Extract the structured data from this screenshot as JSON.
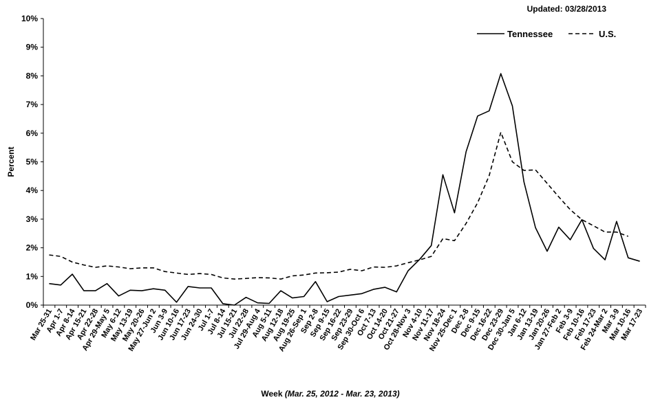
{
  "updated": "Updated: 03/28/2013",
  "chart_data": {
    "type": "line",
    "ylabel": "Percent",
    "xlabel_prefix": "Week ",
    "xlabel_italic": "(Mar. 25, 2012 - Mar. 23, 2013)",
    "ylim": [
      0,
      10
    ],
    "yticks": [
      "0%",
      "1%",
      "2%",
      "3%",
      "4%",
      "5%",
      "6%",
      "7%",
      "8%",
      "9%",
      "10%"
    ],
    "legend_position": "top-right",
    "categories": [
      "Mar 25-31",
      "Apr 1-7",
      "Apr 8-14",
      "Apr 15-21",
      "Apr 22-28",
      "Apr 29-May 5",
      "May 6-12",
      "May 13-19",
      "May 20-26",
      "May 27-Jun 2",
      "Jun 3-9",
      "Jun 10-16",
      "Jun 17-23",
      "Jun 24-30",
      "Jul 1-7",
      "Jul 8-14",
      "Jul 15-21",
      "Jul 22-28",
      "Jul 29-Aug 4",
      "Aug 5-11",
      "Aug 12-18",
      "Aug 19-25",
      "Aug 26-Sep 1",
      "Sep 2-8",
      "Sep 9-15",
      "Sep 16-22",
      "Sep 23-29",
      "Sep 30-Oct 6",
      "Oct 7-13",
      "Oct 14-20",
      "Oct 21-27",
      "Oct 28-Nov 3",
      "Nov 4-10",
      "Nov 11-17",
      "Nov 18-24",
      "Nov 25-Dec 1",
      "Dec 2-8",
      "Dec 9-15",
      "Dec 16-22",
      "Dec 23-29",
      "Dec 30-Jan 5",
      "Jan 6-12",
      "Jan 13-19",
      "Jan 20-26",
      "Jan 27-Feb 2",
      "Feb 3-9",
      "Feb 10-16",
      "Feb 17-23",
      "Feb 24-Mar 2",
      "Mar 3-9",
      "Mar 10-16",
      "Mar 17-23"
    ],
    "series": [
      {
        "name": "Tennessee",
        "style": "solid",
        "color": "#000000",
        "values": [
          0.75,
          0.7,
          1.08,
          0.5,
          0.5,
          0.75,
          0.32,
          0.52,
          0.5,
          0.57,
          0.52,
          0.1,
          0.65,
          0.6,
          0.6,
          0.05,
          0.0,
          0.27,
          0.08,
          0.06,
          0.5,
          0.25,
          0.3,
          0.82,
          0.12,
          0.3,
          0.35,
          0.4,
          0.55,
          0.62,
          0.46,
          1.2,
          1.6,
          2.08,
          4.55,
          3.22,
          5.35,
          6.6,
          6.78,
          8.08,
          6.95,
          4.3,
          2.7,
          1.88,
          2.72,
          2.28,
          2.98,
          1.98,
          1.58,
          2.92,
          1.65,
          1.53
        ]
      },
      {
        "name": "U.S.",
        "style": "dashed",
        "color": "#000000",
        "values": [
          1.75,
          1.7,
          1.5,
          1.4,
          1.32,
          1.37,
          1.33,
          1.27,
          1.3,
          1.3,
          1.17,
          1.12,
          1.07,
          1.1,
          1.07,
          0.95,
          0.91,
          0.93,
          0.96,
          0.95,
          0.91,
          1.02,
          1.05,
          1.12,
          1.13,
          1.15,
          1.25,
          1.2,
          1.33,
          1.32,
          1.37,
          1.48,
          1.58,
          1.7,
          2.32,
          2.25,
          2.85,
          3.57,
          4.52,
          6.03,
          5.0,
          4.7,
          4.72,
          4.25,
          3.78,
          3.33,
          2.98,
          2.77,
          2.55,
          2.55,
          2.4,
          null
        ]
      }
    ]
  }
}
